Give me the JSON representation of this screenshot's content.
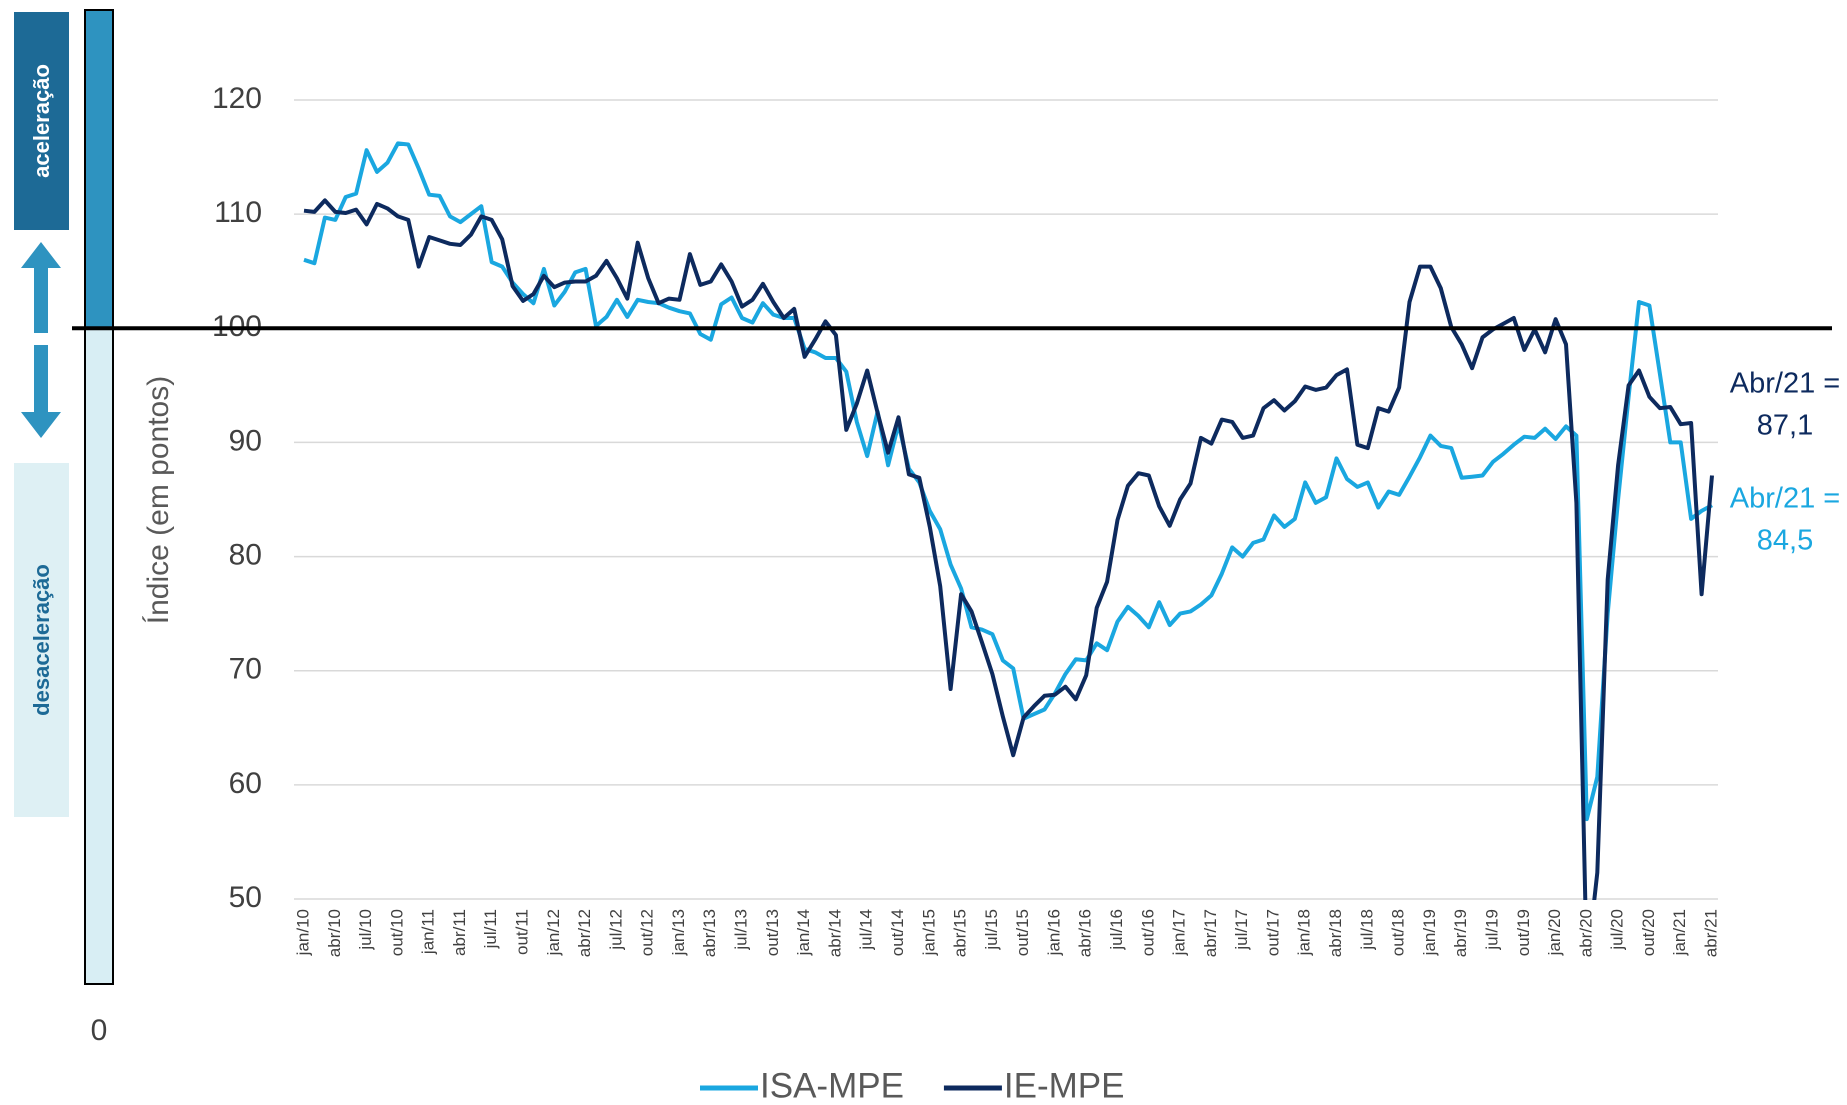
{
  "chart_data": {
    "type": "line",
    "y_axis_label": "Índice (em pontos)",
    "side_labels": {
      "top": "aceleração",
      "bottom": "desaceleração",
      "base": "0"
    },
    "categories": [
      "jan/10",
      null,
      null,
      "abr/10",
      null,
      null,
      "jul/10",
      null,
      null,
      "out/10",
      null,
      null,
      "jan/11",
      null,
      null,
      "abr/11",
      null,
      null,
      "jul/11",
      null,
      null,
      "out/11",
      null,
      null,
      "jan/12",
      null,
      null,
      "abr/12",
      null,
      null,
      "jul/12",
      null,
      null,
      "out/12",
      null,
      null,
      "jan/13",
      null,
      null,
      "abr/13",
      null,
      null,
      "jul/13",
      null,
      null,
      "out/13",
      null,
      null,
      "jan/14",
      null,
      null,
      "abr/14",
      null,
      null,
      "jul/14",
      null,
      null,
      "out/14",
      null,
      null,
      "jan/15",
      null,
      null,
      "abr/15",
      null,
      null,
      "jul/15",
      null,
      null,
      "out/15",
      null,
      null,
      "jan/16",
      null,
      null,
      "abr/16",
      null,
      null,
      "jul/16",
      null,
      null,
      "out/16",
      null,
      null,
      "jan/17",
      null,
      null,
      "abr/17",
      null,
      null,
      "jul/17",
      null,
      null,
      "out/17",
      null,
      null,
      "jan/18",
      null,
      null,
      "abr/18",
      null,
      null,
      "jul/18",
      null,
      null,
      "out/18",
      null,
      null,
      "jan/19",
      null,
      null,
      "abr/19",
      null,
      null,
      "jul/19",
      null,
      null,
      "out/19",
      null,
      null,
      "jan/20",
      null,
      null,
      "abr/20",
      null,
      null,
      "jul/20",
      null,
      null,
      "out/20",
      null,
      null,
      "jan/21",
      null,
      null,
      "abr/21"
    ],
    "series": [
      {
        "name": "ISA-MPE",
        "color": "#1aa7e0",
        "values": [
          106,
          105.7,
          109.7,
          109.5,
          111.5,
          111.8,
          115.6,
          113.7,
          114.5,
          116.2,
          116.1,
          114,
          111.7,
          111.6,
          109.8,
          109.3,
          110,
          110.7,
          105.8,
          105.4,
          104,
          103,
          102.2,
          105.2,
          102,
          103.2,
          104.9,
          105.2,
          100.2,
          101,
          102.5,
          101,
          102.5,
          102.3,
          102.2,
          101.8,
          101.5,
          101.3,
          99.5,
          99,
          102.1,
          102.7,
          100.9,
          100.5,
          102.2,
          101.2,
          100.9,
          100.9,
          98.2,
          97.9,
          97.4,
          97.4,
          96.2,
          91.8,
          88.8,
          92.7,
          88,
          91.6,
          87.7,
          86.5,
          84,
          82.4,
          79.3,
          77.2,
          73.8,
          73.6,
          73.2,
          70.9,
          70.2,
          65.8,
          66.2,
          66.6,
          68,
          69.7,
          71,
          70.9,
          72.4,
          71.8,
          74.3,
          75.6,
          74.8,
          73.8,
          76,
          74,
          75,
          75.2,
          75.8,
          76.6,
          78.5,
          80.8,
          80,
          81.2,
          81.5,
          83.6,
          82.6,
          83.3,
          86.5,
          84.7,
          85.2,
          88.6,
          86.8,
          86.1,
          86.5,
          84.3,
          85.7,
          85.4,
          87,
          88.7,
          90.6,
          89.7,
          89.5,
          86.9,
          87,
          87.1,
          88.3,
          89,
          89.8,
          90.5,
          90.4,
          91.2,
          90.3,
          91.4,
          90.6,
          57,
          60.7,
          75,
          85,
          94,
          102.3,
          102,
          96,
          90,
          90,
          83.3,
          84,
          84.5
        ]
      },
      {
        "name": "IE-MPE",
        "color": "#0d2a5e",
        "values": [
          110.3,
          110.2,
          111.2,
          110.2,
          110.1,
          110.4,
          109.1,
          110.9,
          110.5,
          109.8,
          109.5,
          105.4,
          108,
          107.7,
          107.4,
          107.3,
          108.2,
          109.8,
          109.5,
          107.8,
          103.7,
          102.4,
          103,
          104.6,
          103.6,
          104,
          104.1,
          104.1,
          104.6,
          105.9,
          104.4,
          102.6,
          107.5,
          104.4,
          102.2,
          102.6,
          102.5,
          106.5,
          103.8,
          104.1,
          105.6,
          104.1,
          101.9,
          102.5,
          103.9,
          102.3,
          100.9,
          101.7,
          97.5,
          99,
          100.6,
          99.4,
          91.1,
          93.4,
          96.3,
          92.6,
          89.1,
          92.2,
          87.2,
          86.9,
          82.6,
          77.4,
          68.4,
          76.7,
          75.2,
          72.5,
          69.7,
          66,
          62.6,
          65.9,
          66.9,
          67.8,
          67.9,
          68.6,
          67.5,
          69.6,
          75.5,
          77.8,
          83.2,
          86.2,
          87.3,
          87.1,
          84.4,
          82.7,
          85,
          86.4,
          90.4,
          89.9,
          92,
          91.8,
          90.4,
          90.6,
          93,
          93.7,
          92.8,
          93.6,
          94.9,
          94.6,
          94.8,
          95.9,
          96.4,
          89.8,
          89.5,
          93,
          92.7,
          94.8,
          102.3,
          105.4,
          105.4,
          103.5,
          100.1,
          98.6,
          96.5,
          99.2,
          99.9,
          100.4,
          100.9,
          98.1,
          99.9,
          97.9,
          100.8,
          98.6,
          84.7,
          44,
          52.3,
          78,
          88,
          95,
          96.3,
          94,
          93,
          93.1,
          91.6,
          91.7,
          76.7,
          87.1
        ]
      }
    ],
    "annotations": [
      {
        "lines": [
          "Abr/21 =",
          "87,1"
        ],
        "color": "#0d2a5e"
      },
      {
        "lines": [
          "Abr/21 =",
          "84,5"
        ],
        "color": "#1aa7e0"
      }
    ],
    "ref_line": 100,
    "ylim": [
      50,
      120
    ],
    "yticks": [
      50,
      60,
      70,
      80,
      90,
      100,
      110,
      120
    ],
    "grid": true,
    "legend": "bottom"
  }
}
